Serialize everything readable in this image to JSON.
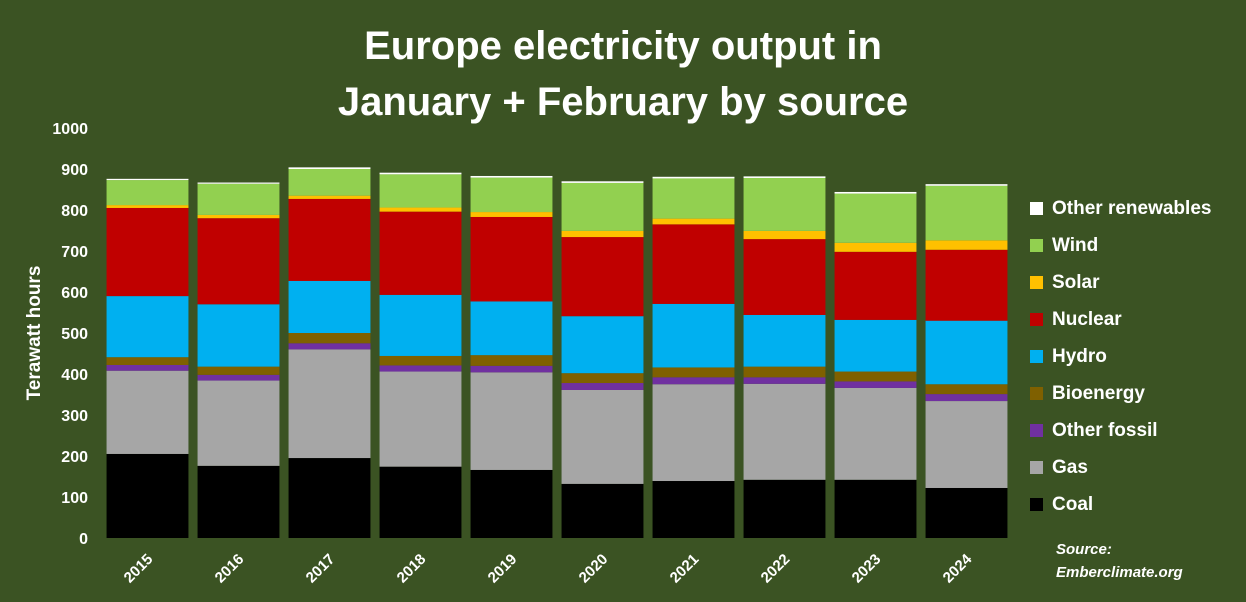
{
  "chart_data": {
    "type": "bar",
    "stacked": true,
    "title_line1": "Europe electricity output in",
    "title_line2": "January + February by source",
    "ylabel": "Terawatt hours",
    "xlabel": "",
    "ylim": [
      0,
      1000
    ],
    "yticks": [
      0,
      100,
      200,
      300,
      400,
      500,
      600,
      700,
      800,
      900,
      1000
    ],
    "grid": false,
    "legend_position": "right",
    "categories": [
      "2015",
      "2016",
      "2017",
      "2018",
      "2019",
      "2020",
      "2021",
      "2022",
      "2023",
      "2024"
    ],
    "series": [
      {
        "name": "Coal",
        "color": "#000000",
        "values": [
          205,
          176,
          195,
          174,
          166,
          132,
          139,
          142,
          142,
          122
        ]
      },
      {
        "name": "Gas",
        "color": "#a6a6a6",
        "values": [
          203,
          208,
          265,
          232,
          238,
          229,
          236,
          234,
          224,
          212
        ]
      },
      {
        "name": "Other fossil",
        "color": "#7030a0",
        "values": [
          14,
          14,
          15,
          15,
          16,
          17,
          17,
          16,
          16,
          17
        ]
      },
      {
        "name": "Bioenergy",
        "color": "#7f6000",
        "values": [
          19,
          20,
          25,
          23,
          26,
          24,
          24,
          26,
          24,
          24
        ]
      },
      {
        "name": "Hydro",
        "color": "#00b0f0",
        "values": [
          149,
          152,
          127,
          149,
          131,
          139,
          155,
          126,
          126,
          155
        ]
      },
      {
        "name": "Nuclear",
        "color": "#c00000",
        "values": [
          215,
          210,
          200,
          203,
          206,
          193,
          194,
          185,
          166,
          173
        ]
      },
      {
        "name": "Solar",
        "color": "#ffc000",
        "values": [
          7,
          8,
          8,
          10,
          12,
          15,
          14,
          20,
          22,
          23
        ]
      },
      {
        "name": "Wind",
        "color": "#92d050",
        "values": [
          61,
          76,
          65,
          81,
          84,
          117,
          98,
          129,
          120,
          133
        ]
      },
      {
        "name": "Other renewables",
        "color": "#ffffff",
        "values": [
          3,
          3,
          4,
          4,
          4,
          4,
          4,
          4,
          4,
          4
        ]
      }
    ]
  },
  "source_line1": "Source:",
  "source_line2": "Emberclimate.org",
  "colors": {
    "background": "#3b5323"
  }
}
